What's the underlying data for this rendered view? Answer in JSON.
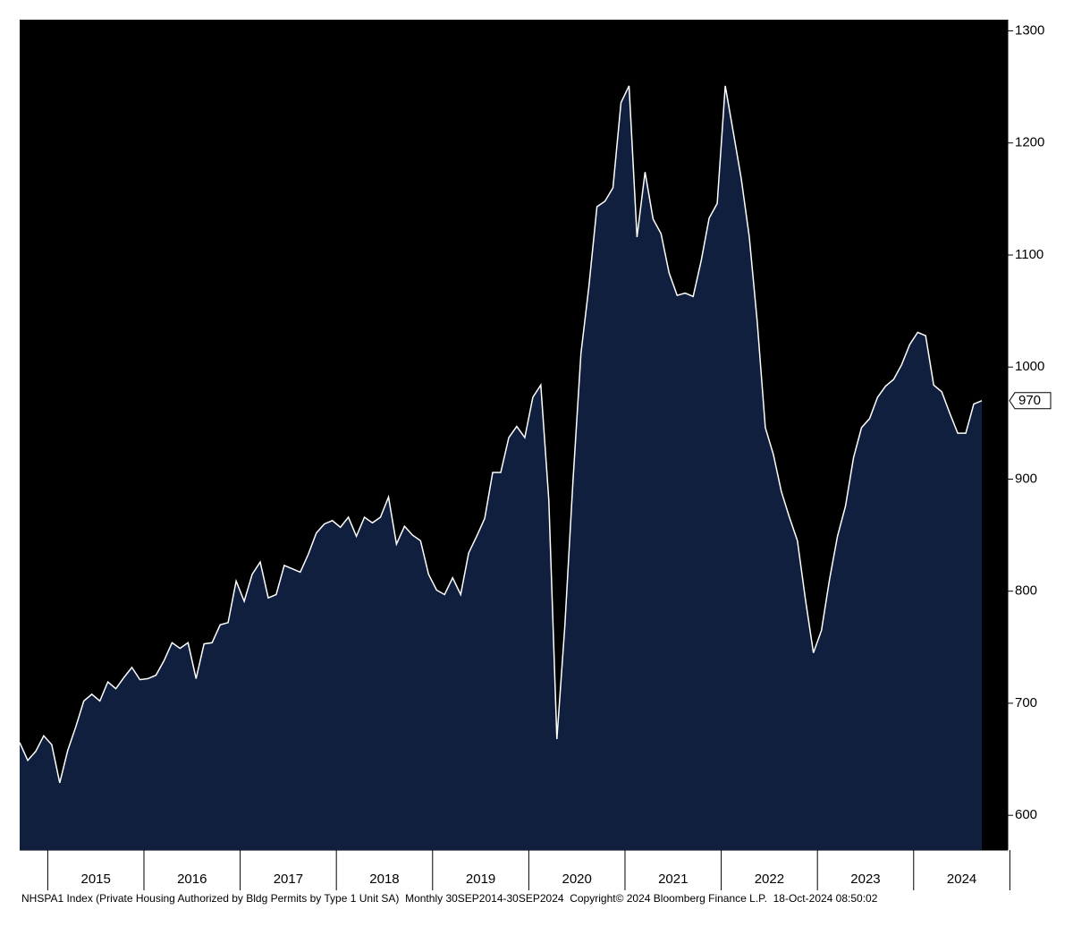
{
  "chart_data": {
    "type": "area",
    "footer": "NHSPA1 Index (Private Housing Authorized by Bldg Permits by Type 1 Unit SA)  Monthly 30SEP2014-30SEP2024  Copyright© 2024 Bloomberg Finance L.P.  18-Oct-2024 08:50:02",
    "categories": [
      null,
      null,
      null,
      null,
      null,
      null,
      null,
      null,
      null,
      null,
      "2015",
      null,
      null,
      null,
      null,
      null,
      null,
      null,
      null,
      null,
      null,
      null,
      "2016",
      null,
      null,
      null,
      null,
      null,
      null,
      null,
      null,
      null,
      null,
      null,
      "2017",
      null,
      null,
      null,
      null,
      null,
      null,
      null,
      null,
      null,
      null,
      null,
      "2018",
      null,
      null,
      null,
      null,
      null,
      null,
      null,
      null,
      null,
      null,
      null,
      "2019",
      null,
      null,
      null,
      null,
      null,
      null,
      null,
      null,
      null,
      null,
      null,
      "2020",
      null,
      null,
      null,
      null,
      null,
      null,
      null,
      null,
      null,
      null,
      null,
      "2021",
      null,
      null,
      null,
      null,
      null,
      null,
      null,
      null,
      null,
      null,
      null,
      "2022",
      null,
      null,
      null,
      null,
      null,
      null,
      null,
      null,
      null,
      null,
      null,
      "2023",
      null,
      null,
      null,
      null,
      null,
      null,
      null,
      null,
      null,
      null,
      null,
      "2024",
      null,
      null
    ],
    "values": [
      665,
      649,
      657,
      671,
      663,
      629,
      658,
      679,
      702,
      708,
      702,
      719,
      713,
      723,
      732,
      721,
      722,
      725,
      738,
      754,
      749,
      754,
      722,
      753,
      754,
      770,
      772,
      809,
      791,
      815,
      826,
      794,
      797,
      823,
      820,
      817,
      833,
      852,
      860,
      863,
      857,
      866,
      849,
      866,
      861,
      866,
      884,
      842,
      858,
      850,
      845,
      815,
      801,
      797,
      812,
      797,
      834,
      849,
      865,
      906,
      906,
      937,
      947,
      937,
      973,
      984,
      881,
      668,
      769,
      897,
      1012,
      1072,
      1143,
      1148,
      1160,
      1236,
      1251,
      1116,
      1174,
      1132,
      1119,
      1084,
      1064,
      1066,
      1063,
      1095,
      1133,
      1146,
      1251,
      1210,
      1168,
      1116,
      1040,
      946,
      922,
      889,
      866,
      845,
      793,
      745,
      765,
      810,
      849,
      876,
      919,
      946,
      954,
      973,
      983,
      989,
      1002,
      1020,
      1031,
      1028,
      984,
      978,
      959,
      941,
      941,
      967,
      970
    ],
    "color": "#0f1f3d",
    "line_color": "#ffffff",
    "background": "#000000",
    "ylim": [
      569,
      1310
    ],
    "yticks": [
      600,
      700,
      800,
      900,
      1000,
      1100,
      1200,
      1300
    ]
  }
}
